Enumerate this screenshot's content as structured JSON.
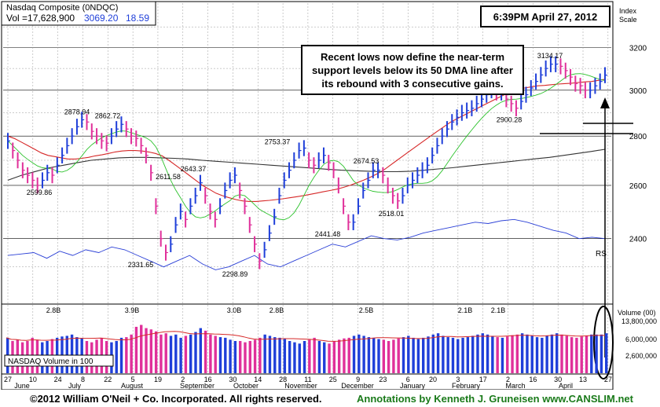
{
  "header": {
    "index_name": "Nasdaq Composite  (0NDQC)",
    "volume": "Vol =17,628,900",
    "price": "3069.20",
    "change": "18.59",
    "timestamp": "6:39PM April 27, 2012"
  },
  "footer": {
    "copyright": "©2012 William O'Neil + Co. Incorporated. All rights reserved.",
    "annotations": "Annotations by Kenneth J. Gruneisen www.CANSLIM.net"
  },
  "chart_data": {
    "type": "bar",
    "title": "Nasdaq Composite  (0NDQC)",
    "scale_label_lines": [
      "Index",
      "Scale"
    ],
    "annotation_lines": [
      "Recent lows now define the near-term",
      "support levels below its 50 DMA line after",
      "its rebound with 3 consecutive gains."
    ],
    "price_axis": {
      "ticks": [
        2400,
        2600,
        2800,
        3000,
        3200
      ],
      "ylim": [
        2180,
        3420
      ],
      "scale": "log"
    },
    "volume_axis_title": "Volume (00)",
    "volume_axis": {
      "ticks": [
        "13,800,000",
        "6,000,000",
        "2,600,000"
      ],
      "tick_values": [
        13800000,
        6000000,
        2600000
      ]
    },
    "volume_legend": "NASDAQ Volume in 100",
    "rs_label": "RS",
    "x_tick_labels": [
      "27",
      "10",
      "24",
      "8",
      "22",
      "5",
      "19",
      "2",
      "16",
      "30",
      "14",
      "28",
      "11",
      "25",
      "9",
      "23",
      "6",
      "20",
      "3",
      "17",
      "2",
      "16",
      "30",
      "13",
      "27"
    ],
    "month_labels": [
      "June",
      "July",
      "August",
      "September",
      "October",
      "November",
      "December",
      "January",
      "February",
      "March",
      "April"
    ],
    "price_annotations": [
      {
        "text": "2599.86",
        "price": 2599.86
      },
      {
        "text": "2878.94",
        "price": 2878.94
      },
      {
        "text": "2862.72",
        "price": 2862.72
      },
      {
        "text": "2331.65",
        "price": 2331.65
      },
      {
        "text": "2611.58",
        "price": 2611.58
      },
      {
        "text": "2643.37",
        "price": 2643.37
      },
      {
        "text": "2298.89",
        "price": 2298.89
      },
      {
        "text": "2753.37",
        "price": 2753.37
      },
      {
        "text": "2441.48",
        "price": 2441.48
      },
      {
        "text": "2674.53",
        "price": 2674.53
      },
      {
        "text": "2518.01",
        "price": 2518.01
      },
      {
        "text": "2900.28",
        "price": 2900.28
      },
      {
        "text": "3134.17",
        "price": 3134.17
      }
    ],
    "volume_annotations": [
      "2.8B",
      "3.9B",
      "3.0B",
      "2.8B",
      "2.5B",
      "2.1B",
      "2.1B"
    ],
    "price_series": [
      {
        "name": "daily",
        "values": [
          2780,
          2740,
          2700,
          2660,
          2640,
          2620,
          2600,
          2620,
          2650,
          2640,
          2680,
          2720,
          2760,
          2800,
          2840,
          2870,
          2860,
          2820,
          2800,
          2780,
          2770,
          2800,
          2830,
          2850,
          2830,
          2800,
          2790,
          2760,
          2720,
          2650,
          2520,
          2400,
          2350,
          2380,
          2450,
          2500,
          2470,
          2520,
          2560,
          2610,
          2560,
          2500,
          2470,
          2520,
          2580,
          2620,
          2640,
          2580,
          2520,
          2450,
          2380,
          2320,
          2360,
          2420,
          2480,
          2560,
          2620,
          2660,
          2700,
          2740,
          2750,
          2700,
          2680,
          2700,
          2720,
          2690,
          2660,
          2600,
          2520,
          2460,
          2460,
          2520,
          2580,
          2620,
          2660,
          2660,
          2640,
          2600,
          2560,
          2540,
          2560,
          2600,
          2620,
          2640,
          2660,
          2680,
          2720,
          2760,
          2800,
          2830,
          2860,
          2880,
          2900,
          2910,
          2920,
          2940,
          2960,
          2980,
          3000,
          2990,
          2990,
          2960,
          2940,
          2920,
          2950,
          2980,
          3010,
          3040,
          3070,
          3100,
          3120,
          3120,
          3110,
          3090,
          3060,
          3030,
          3020,
          3000,
          3000,
          3020,
          3040,
          3069
        ]
      },
      {
        "name": "50-day-ma",
        "values": [
          2800,
          2790,
          2775,
          2760,
          2745,
          2730,
          2720,
          2715,
          2710,
          2705,
          2705,
          2708,
          2712,
          2718,
          2722,
          2728,
          2734,
          2738,
          2740,
          2740,
          2738,
          2734,
          2728,
          2718,
          2700,
          2680,
          2660,
          2640,
          2620,
          2600,
          2585,
          2570,
          2560,
          2552,
          2545,
          2540,
          2538,
          2538,
          2540,
          2542,
          2545,
          2548,
          2552,
          2556,
          2560,
          2565,
          2570,
          2575,
          2580,
          2585,
          2592,
          2600,
          2610,
          2620,
          2632,
          2645,
          2660,
          2680,
          2700,
          2720,
          2740,
          2760,
          2780,
          2800,
          2820,
          2840,
          2860,
          2875,
          2890,
          2905,
          2920,
          2935,
          2950,
          2965,
          2980,
          2990,
          3000,
          3010,
          3015,
          3020,
          3022,
          3025,
          3028,
          3030,
          3032,
          3035,
          3038,
          3040,
          3045,
          3050
        ]
      },
      {
        "name": "200-day-ma",
        "values": [
          2620,
          2640,
          2655,
          2670,
          2680,
          2690,
          2700,
          2705,
          2710,
          2712,
          2712,
          2710,
          2708,
          2705,
          2700,
          2696,
          2692,
          2688,
          2684,
          2680,
          2676,
          2672,
          2668,
          2664,
          2660,
          2658,
          2656,
          2654,
          2654,
          2656,
          2660,
          2665,
          2670,
          2676,
          2682,
          2688,
          2694,
          2700,
          2706,
          2712,
          2720,
          2728,
          2736,
          2745
        ]
      },
      {
        "name": "relative-strength",
        "values": [
          2340,
          2345,
          2350,
          2330,
          2355,
          2340,
          2360,
          2350,
          2370,
          2360,
          2340,
          2320,
          2300,
          2320,
          2340,
          2310,
          2290,
          2300,
          2320,
          2340,
          2310,
          2300,
          2320,
          2340,
          2360,
          2380,
          2370,
          2390,
          2410,
          2400,
          2395,
          2405,
          2420,
          2430,
          2440,
          2450,
          2460,
          2455,
          2465,
          2470,
          2460,
          2445,
          2430,
          2420,
          2400,
          2405,
          2400
        ]
      }
    ],
    "volume_series": [
      0.55,
      0.5,
      0.52,
      0.48,
      0.5,
      0.55,
      0.52,
      0.48,
      0.5,
      0.53,
      0.55,
      0.57,
      0.58,
      0.6,
      0.56,
      0.54,
      0.5,
      0.48,
      0.52,
      0.55,
      0.5,
      0.48,
      0.5,
      0.55,
      0.56,
      0.6,
      0.72,
      0.75,
      0.7,
      0.68,
      0.65,
      0.6,
      0.62,
      0.58,
      0.6,
      0.55,
      0.58,
      0.6,
      0.64,
      0.7,
      0.66,
      0.6,
      0.58,
      0.56,
      0.55,
      0.52,
      0.5,
      0.5,
      0.48,
      0.5,
      0.52,
      0.55,
      0.6,
      0.58,
      0.56,
      0.55,
      0.53,
      0.5,
      0.48,
      0.46,
      0.5,
      0.52,
      0.55,
      0.5,
      0.48,
      0.46,
      0.5,
      0.52,
      0.54,
      0.55,
      0.58,
      0.6,
      0.58,
      0.56,
      0.55,
      0.53,
      0.52,
      0.5,
      0.52,
      0.54,
      0.56,
      0.58,
      0.55,
      0.53,
      0.55,
      0.57,
      0.6,
      0.62,
      0.58,
      0.56,
      0.55,
      0.53,
      0.55,
      0.56,
      0.58,
      0.6,
      0.62,
      0.6,
      0.58,
      0.56,
      0.55,
      0.57,
      0.59,
      0.6,
      0.62,
      0.6,
      0.58,
      0.56,
      0.55,
      0.58,
      0.6,
      0.62,
      0.6,
      0.58,
      0.56,
      0.55,
      0.57,
      0.58,
      0.6,
      0.6,
      0.6,
      0.62
    ]
  }
}
